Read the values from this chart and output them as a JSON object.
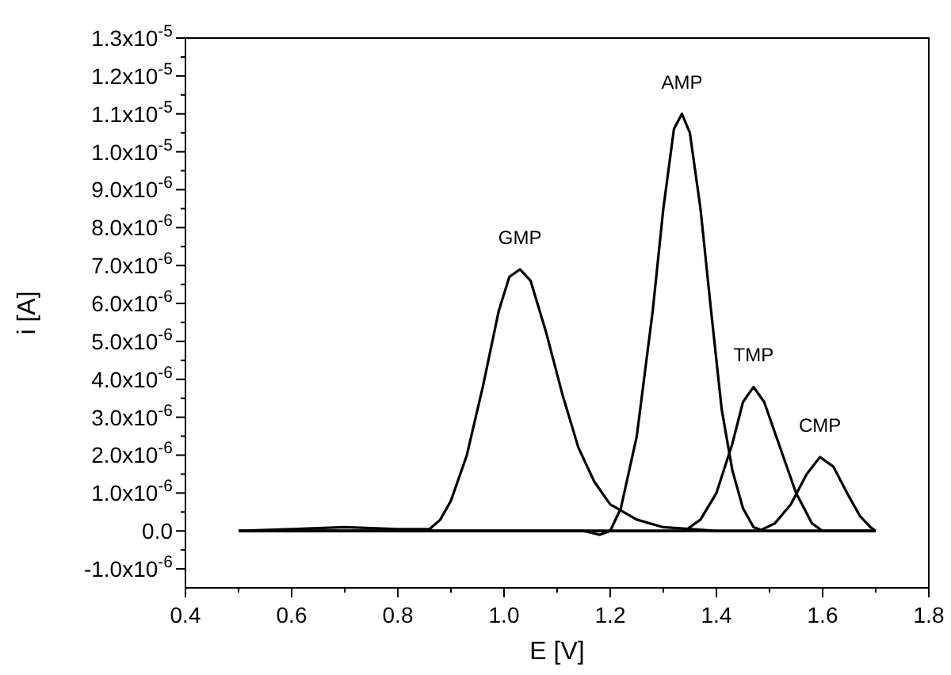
{
  "chart_data": {
    "type": "line",
    "xlabel": "E [V]",
    "ylabel": "i [A]",
    "xlim": [
      0.4,
      1.8
    ],
    "xticks": [
      0.4,
      0.6,
      0.8,
      {
        "value": 1,
        "label": "1.0"
      },
      1.2,
      1.4,
      1.6,
      1.8
    ],
    "ylim": [
      -1.5e-06,
      1.3e-05
    ],
    "yticks": [
      {
        "value": -1e-06,
        "label": "-1.0x10$^{-6}$"
      },
      {
        "value": 0,
        "label": "0.0"
      },
      {
        "value": 1e-06,
        "label": "1.0x10$^{-6}$"
      },
      {
        "value": 2e-06,
        "label": "2.0x10$^{-6}$"
      },
      {
        "value": 3e-06,
        "label": "3.0x10$^{-6}$"
      },
      {
        "value": 4e-06,
        "label": "4.0x10$^{-6}$"
      },
      {
        "value": 5e-06,
        "label": "5.0x10$^{-6}$"
      },
      {
        "value": 6e-06,
        "label": "6.0x10$^{-6}$"
      },
      {
        "value": 7e-06,
        "label": "7.0x10$^{-6}$"
      },
      {
        "value": 8e-06,
        "label": "8.0x10$^{-6}$"
      },
      {
        "value": 9e-06,
        "label": "9.0x10$^{-6}$"
      },
      {
        "value": 1e-05,
        "label": "1.0x10$^{-5}$"
      },
      {
        "value": 1.1e-05,
        "label": "1.1x10$^{-5}$"
      },
      {
        "value": 1.2e-05,
        "label": "1.2x10$^{-5}$"
      },
      {
        "value": 1.3e-05,
        "label": "1.3x10$^{-5}$"
      }
    ],
    "series": [
      {
        "color": "#000000",
        "x": [
          0.5,
          0.6,
          0.7,
          0.8,
          0.86,
          0.88,
          0.9,
          0.93,
          0.96,
          0.99,
          1.01,
          1.03,
          1.05,
          1.08,
          1.11,
          1.14,
          1.17,
          1.2,
          1.25,
          1.3,
          1.4,
          1.7
        ],
        "values": [
          0,
          5e-08,
          1e-07,
          5e-08,
          5e-08,
          3e-07,
          8e-07,
          2e-06,
          3.8e-06,
          5.8e-06,
          6.7e-06,
          6.9e-06,
          6.6e-06,
          5.2e-06,
          3.6e-06,
          2.2e-06,
          1.3e-06,
          7e-07,
          3e-07,
          1e-07,
          0,
          0
        ]
      },
      {
        "color": "#000000",
        "x": [
          0.5,
          1.15,
          1.18,
          1.2,
          1.22,
          1.25,
          1.28,
          1.3,
          1.32,
          1.335,
          1.35,
          1.37,
          1.39,
          1.41,
          1.43,
          1.45,
          1.47,
          1.49,
          1.7
        ],
        "values": [
          0,
          0,
          -1e-07,
          0,
          6e-07,
          2.5e-06,
          5.8e-06,
          8.5e-06,
          1.06e-05,
          1.1e-05,
          1.05e-05,
          8.5e-06,
          5.8e-06,
          3.2e-06,
          1.6e-06,
          6e-07,
          1e-07,
          0,
          0
        ]
      },
      {
        "color": "#000000",
        "x": [
          0.5,
          1.34,
          1.37,
          1.4,
          1.43,
          1.45,
          1.47,
          1.49,
          1.52,
          1.55,
          1.58,
          1.6,
          1.7
        ],
        "values": [
          0,
          0,
          3e-07,
          1e-06,
          2.3e-06,
          3.4e-06,
          3.8e-06,
          3.4e-06,
          2.2e-06,
          1e-06,
          2e-07,
          0,
          0
        ]
      },
      {
        "color": "#000000",
        "x": [
          0.5,
          1.48,
          1.51,
          1.54,
          1.57,
          1.595,
          1.62,
          1.65,
          1.67,
          1.69,
          1.7
        ],
        "values": [
          0,
          0,
          2e-07,
          7e-07,
          1.5e-06,
          1.95e-06,
          1.7e-06,
          9e-07,
          4e-07,
          1e-07,
          0
        ]
      }
    ],
    "annotations": [
      {
        "text": "GMP",
        "x": 1.03,
        "y": 6.9e-06
      },
      {
        "text": "AMP",
        "x": 1.335,
        "y": 1.1e-05
      },
      {
        "text": "TMP",
        "x": 1.47,
        "y": 3.8e-06
      },
      {
        "text": "CMP",
        "x": 1.595,
        "y": 1.95e-06
      }
    ],
    "grid": false,
    "marker": "none",
    "line_style": "solid"
  }
}
